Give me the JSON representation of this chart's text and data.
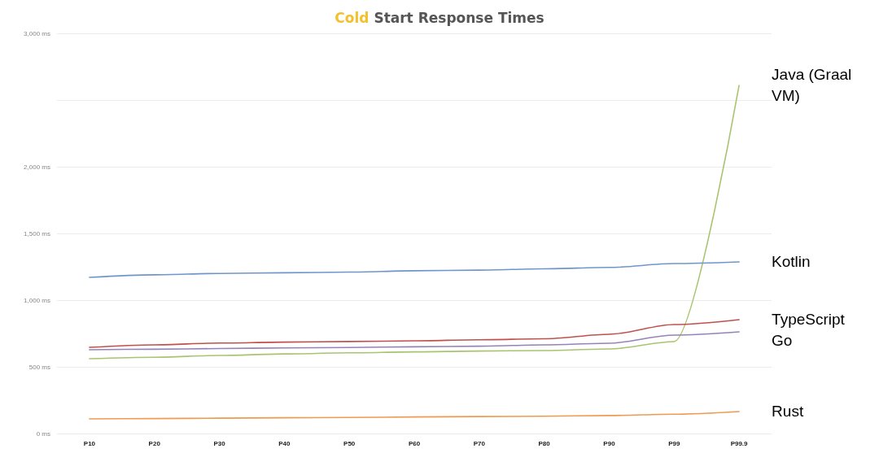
{
  "chart_data": {
    "type": "line",
    "title": "Cold Start Response Times",
    "categories": [
      "P10",
      "P20",
      "P30",
      "P40",
      "P50",
      "P60",
      "P70",
      "P80",
      "P90",
      "P99",
      "P99.9"
    ],
    "series": [
      {
        "name": "Java (Graal VM)",
        "color": "#a9c46f",
        "values": [
          561,
          572,
          585,
          597,
          605,
          612,
          618,
          622,
          634,
          689,
          2610
        ]
      },
      {
        "name": "Kotlin",
        "color": "#6f96cc",
        "values": [
          1171,
          1190,
          1200,
          1205,
          1210,
          1220,
          1225,
          1235,
          1245,
          1274,
          1287
        ]
      },
      {
        "name": "TypeScript",
        "color": "#c0504d",
        "values": [
          646,
          665,
          678,
          685,
          690,
          695,
          703,
          710,
          744,
          817,
          854
        ]
      },
      {
        "name": "Go",
        "color": "#9483b8",
        "values": [
          628,
          632,
          637,
          642,
          645,
          650,
          655,
          665,
          677,
          738,
          762
        ]
      },
      {
        "name": "Rust",
        "color": "#f09a50",
        "values": [
          110,
          112,
          115,
          118,
          120,
          124,
          127,
          130,
          135,
          145,
          165
        ]
      }
    ],
    "ylim": [
      0,
      3000
    ],
    "yticks": [
      {
        "value": 0,
        "label": "0 ms"
      },
      {
        "value": 500,
        "label": "500 ms"
      },
      {
        "value": 1000,
        "label": "1,000 ms"
      },
      {
        "value": 1500,
        "label": "1,500 ms"
      },
      {
        "value": 2000,
        "label": "2,000 ms"
      },
      {
        "value": 2500,
        "label": null
      },
      {
        "value": 3000,
        "label": "3,000 ms"
      }
    ],
    "grid": "y",
    "legend": false,
    "marker": "none",
    "line_style": "solid"
  }
}
